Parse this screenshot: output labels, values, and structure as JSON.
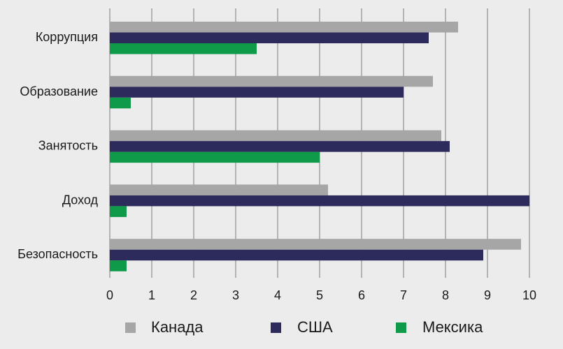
{
  "chart_data": {
    "type": "bar",
    "orientation": "horizontal",
    "categories": [
      "Коррупция",
      "Образование",
      "Занятость",
      "Доход",
      "Безопасность"
    ],
    "series": [
      {
        "name": "Канада",
        "color": "#a6a6a6",
        "values": [
          8.3,
          7.7,
          7.9,
          5.2,
          9.8
        ]
      },
      {
        "name": "США",
        "color": "#2d2a5c",
        "values": [
          7.6,
          7.0,
          8.1,
          10.0,
          8.9
        ]
      },
      {
        "name": "Мексика",
        "color": "#0e9a48",
        "values": [
          3.5,
          0.5,
          5.0,
          0.4,
          0.4
        ]
      }
    ],
    "xlim": [
      0,
      10
    ],
    "xticks": [
      "0",
      "1",
      "2",
      "3",
      "4",
      "5",
      "6",
      "7",
      "8",
      "9",
      "10"
    ],
    "grid": "vertical",
    "legend_position": "bottom"
  }
}
